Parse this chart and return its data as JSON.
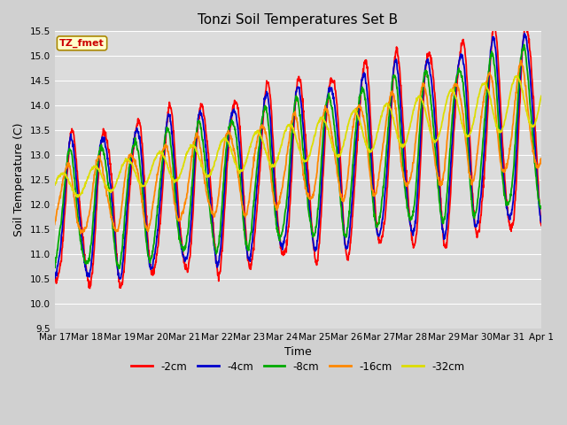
{
  "title": "Tonzi Soil Temperatures Set B",
  "xlabel": "Time",
  "ylabel": "Soil Temperature (C)",
  "ylim": [
    9.5,
    15.5
  ],
  "fig_bg_color": "#d0d0d0",
  "plot_bg_color": "#dcdcdc",
  "legend_label": "TZ_fmet",
  "legend_label_color": "#cc0000",
  "legend_label_bg": "#ffffcc",
  "series": {
    "-2cm": {
      "color": "#ff0000",
      "lw": 1.3
    },
    "-4cm": {
      "color": "#0000cc",
      "lw": 1.3
    },
    "-8cm": {
      "color": "#00aa00",
      "lw": 1.3
    },
    "-16cm": {
      "color": "#ff8800",
      "lw": 1.3
    },
    "-32cm": {
      "color": "#dddd00",
      "lw": 1.3
    }
  },
  "tick_labels": [
    "Mar 17",
    "Mar 18",
    "Mar 19",
    "Mar 20",
    "Mar 21",
    "Mar 22",
    "Mar 23",
    "Mar 24",
    "Mar 25",
    "Mar 26",
    "Mar 27",
    "Mar 28",
    "Mar 29",
    "Mar 30",
    "Mar 31",
    "Apr 1"
  ],
  "yticks": [
    9.5,
    10.0,
    10.5,
    11.0,
    11.5,
    12.0,
    12.5,
    13.0,
    13.5,
    14.0,
    14.5,
    15.0,
    15.5
  ],
  "title_fontsize": 11,
  "axis_label_fontsize": 9,
  "tick_fontsize": 7.5
}
